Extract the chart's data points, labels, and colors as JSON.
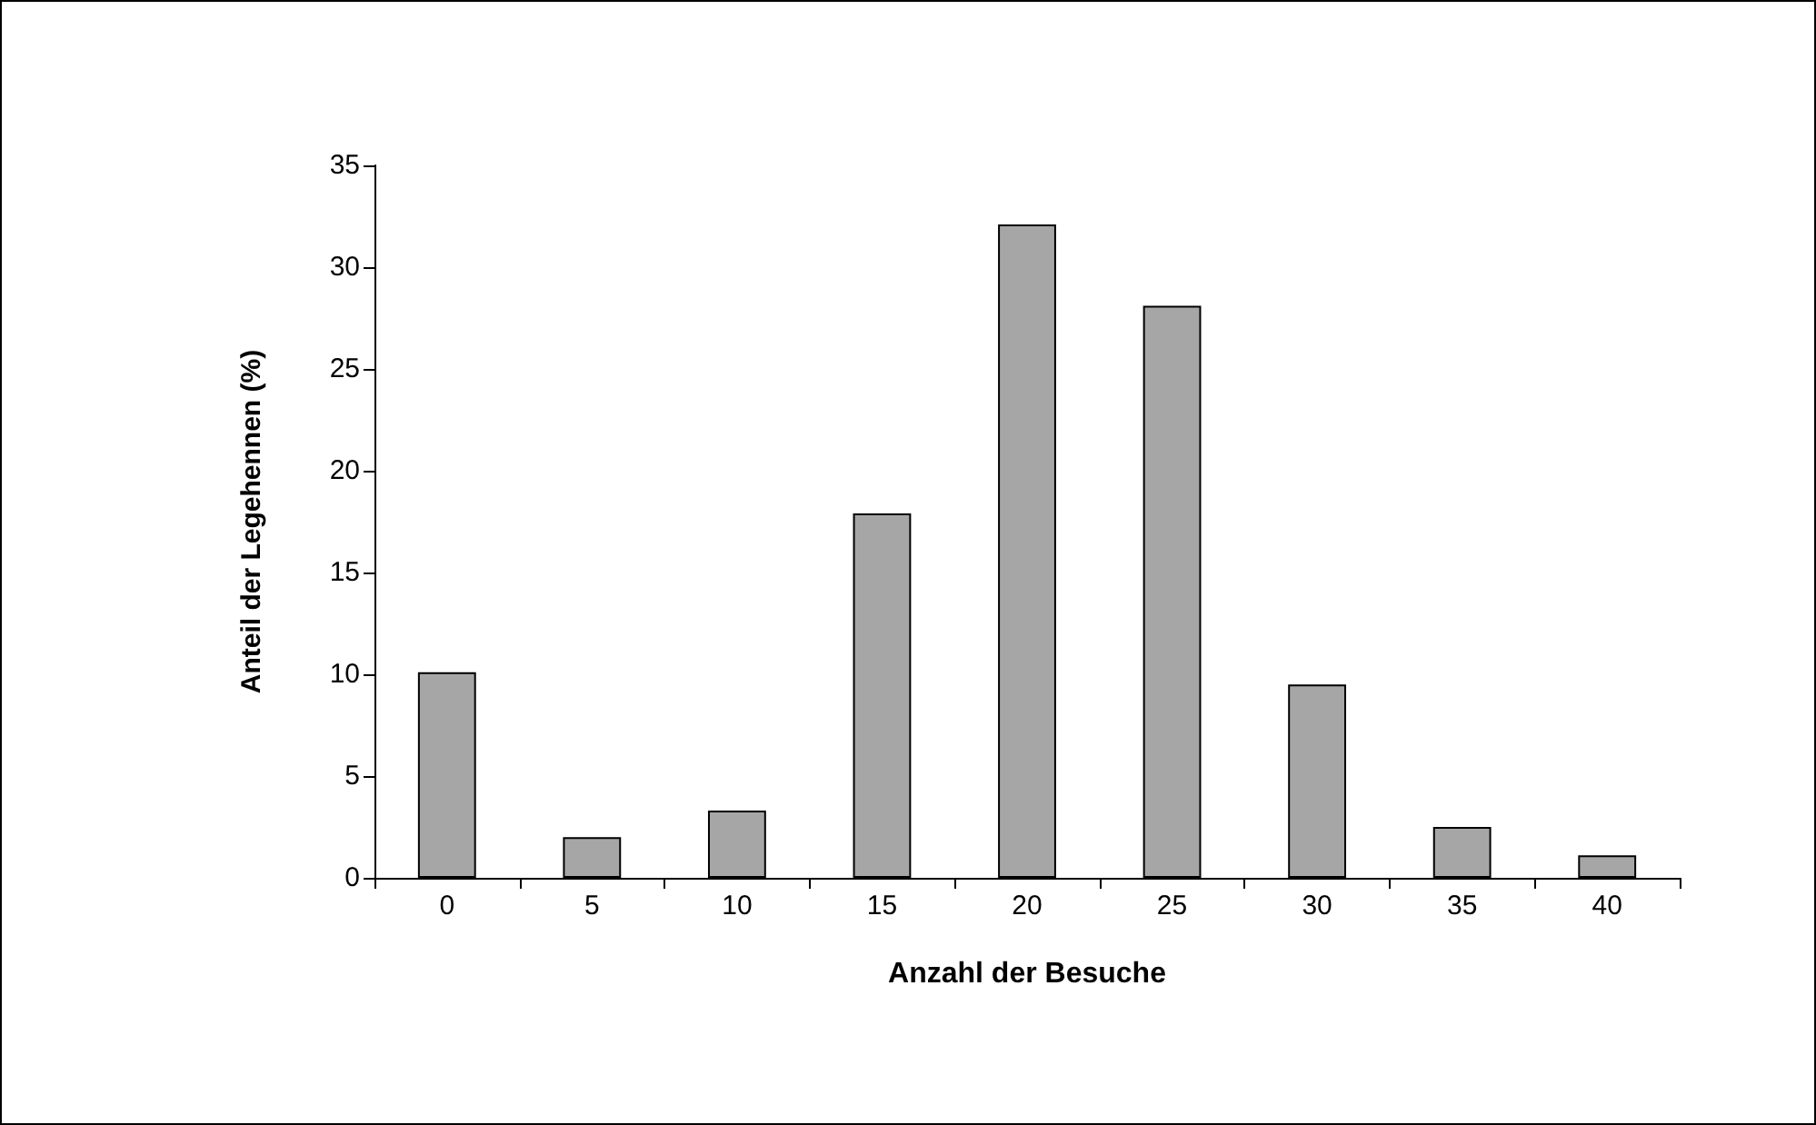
{
  "chart_data": {
    "type": "bar",
    "xlabel": "Anzahl der Besuche",
    "ylabel": "Anteil der Legehennen (%)",
    "categories": [
      "0",
      "5",
      "10",
      "15",
      "20",
      "25",
      "30",
      "35",
      "40"
    ],
    "values": [
      10.1,
      2.0,
      3.3,
      17.9,
      32.1,
      28.1,
      9.5,
      2.5,
      1.1
    ],
    "color": "#a6a6a6",
    "ylim": [
      0,
      35
    ],
    "yticks": [
      0,
      5,
      10,
      15,
      20,
      25,
      30,
      35
    ]
  }
}
